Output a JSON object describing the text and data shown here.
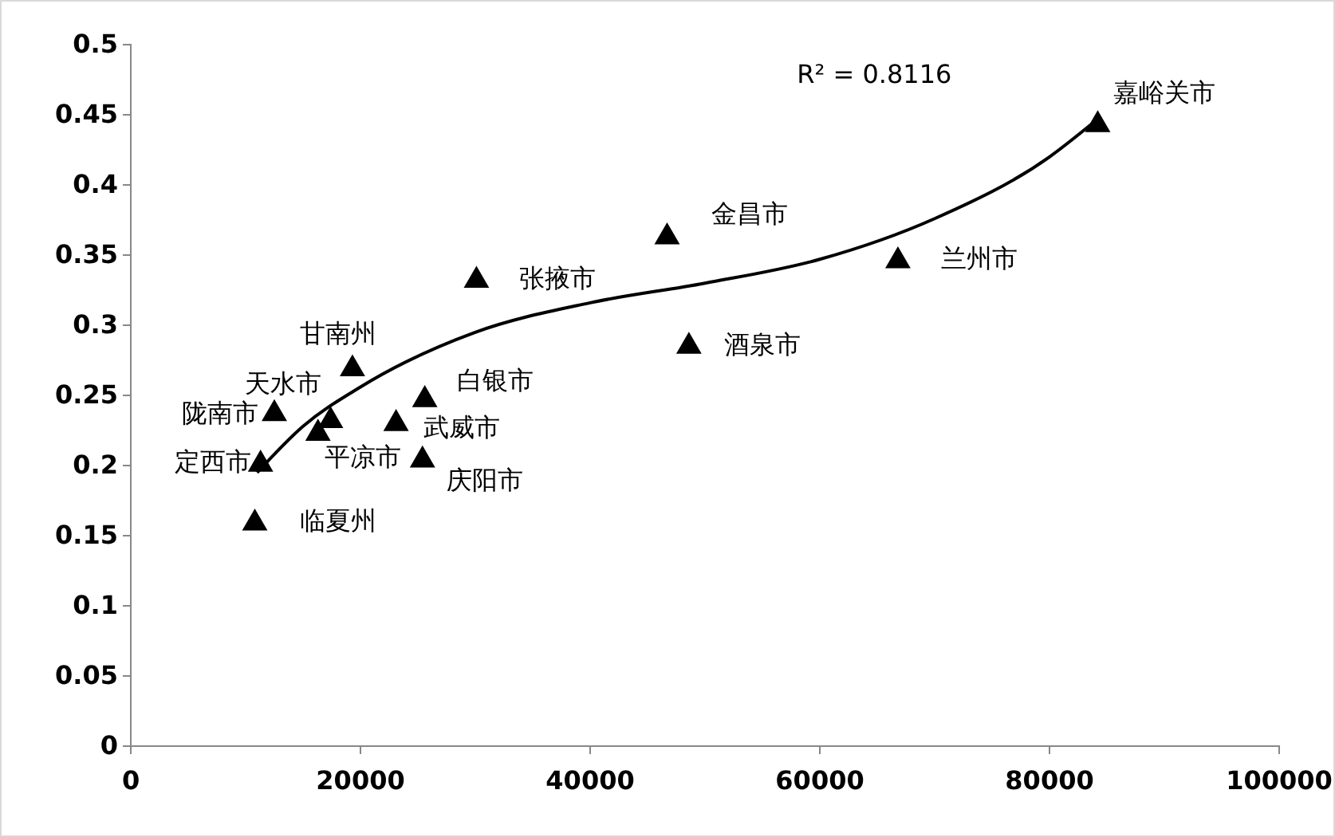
{
  "chart_data": {
    "type": "scatter",
    "xlim": [
      0,
      100000
    ],
    "xticks": [
      0,
      20000,
      40000,
      60000,
      80000,
      100000
    ],
    "ylim": [
      0,
      0.5
    ],
    "yticks": [
      0,
      0.05,
      0.1,
      0.15,
      0.2,
      0.25,
      0.3,
      0.35,
      0.4,
      0.45,
      0.5
    ],
    "grid": false,
    "series": [
      {
        "marker": "triangle",
        "color": "#000000",
        "x": [
          84200,
          66800,
          46700,
          48600,
          30100,
          19300,
          25600,
          23100,
          25400,
          17400,
          16300,
          12500,
          11300,
          10800
        ],
        "values": [
          0.444,
          0.347,
          0.364,
          0.286,
          0.333,
          0.27,
          0.248,
          0.231,
          0.205,
          0.233,
          0.224,
          0.238,
          0.202,
          0.16
        ]
      },
      {
        "type": "line",
        "color": "#000000",
        "x": [
          11000,
          15000,
          20000,
          30000,
          40000,
          50000,
          60000,
          70000,
          80000,
          84200
        ],
        "values": [
          0.195,
          0.228,
          0.256,
          0.295,
          0.316,
          0.33,
          0.347,
          0.376,
          0.42,
          0.447
        ]
      }
    ],
    "annotations": [
      "R² = 0.8116",
      {
        "text": "嘉峪关市",
        "x": 84200,
        "y": 0.444
      },
      {
        "text": "兰州市",
        "x": 66800,
        "y": 0.347
      },
      {
        "text": "金昌市",
        "x": 46700,
        "y": 0.364
      },
      {
        "text": "酒泉市",
        "x": 48600,
        "y": 0.286
      },
      {
        "text": "张掖市",
        "x": 30100,
        "y": 0.333
      },
      {
        "text": "甘南州",
        "x": 19300,
        "y": 0.27
      },
      {
        "text": "白银市",
        "x": 25600,
        "y": 0.248
      },
      {
        "text": "武威市",
        "x": 23100,
        "y": 0.231
      },
      {
        "text": "庆阳市",
        "x": 25400,
        "y": 0.205
      },
      {
        "text": "天水市",
        "x": 17400,
        "y": 0.233
      },
      {
        "text": "平凉市",
        "x": 16300,
        "y": 0.224
      },
      {
        "text": "陇南市",
        "x": 12500,
        "y": 0.238
      },
      {
        "text": "定西市",
        "x": 11300,
        "y": 0.202
      },
      {
        "text": "临夏州",
        "x": 10800,
        "y": 0.16
      }
    ]
  }
}
